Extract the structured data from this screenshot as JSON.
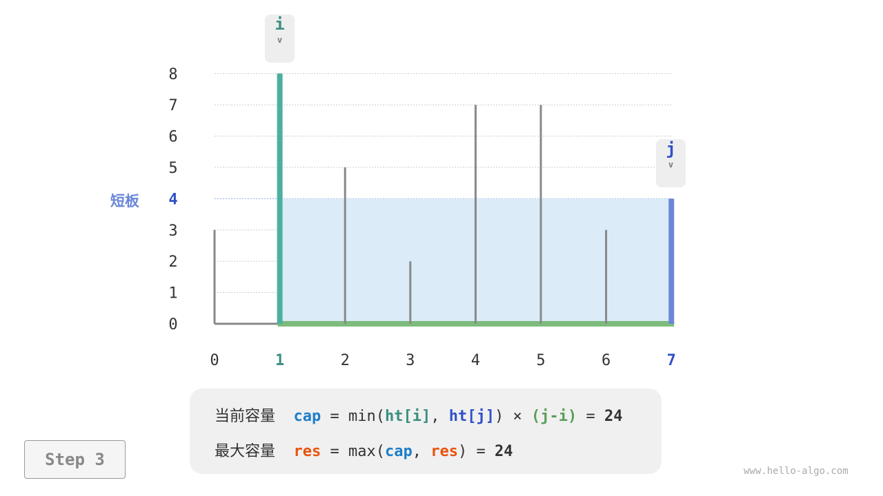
{
  "chart_data": {
    "type": "bar",
    "categories": [
      "0",
      "1",
      "2",
      "3",
      "4",
      "5",
      "6",
      "7"
    ],
    "values": [
      3,
      8,
      5,
      2,
      7,
      7,
      3,
      4
    ],
    "ylim": [
      0,
      8
    ],
    "yticks": [
      "0",
      "1",
      "2",
      "3",
      "4",
      "5",
      "6",
      "7",
      "8"
    ],
    "grid": true,
    "highlight": {
      "i": 1,
      "j": 7,
      "short_height": 4
    }
  },
  "pointers": {
    "i": "i",
    "j": "j",
    "arrow": "v"
  },
  "short_label": "短板",
  "formula": {
    "line1": {
      "label": "当前容量",
      "cap": "cap",
      "eq": " = ",
      "min": "min(",
      "ht_i": "ht[i]",
      "comma": ", ",
      "ht_j": "ht[j]",
      "close": ")",
      "times": " × ",
      "ji": "(j-i)",
      "eq2": " = ",
      "value": "24"
    },
    "line2": {
      "label": "最大容量",
      "res": "res",
      "eq": " = ",
      "max": "max(",
      "cap": "cap",
      "comma": ", ",
      "res2": "res",
      "close": ")",
      "eq2": " = ",
      "value": "24"
    }
  },
  "step": "Step 3",
  "watermark": "www.hello-algo.com",
  "colors": {
    "i": "#4caf9f",
    "j": "#6b86d9",
    "area": "#dbecf8",
    "base": "#7dbb7d",
    "cap": "#1e7ec8",
    "res": "#e8530e",
    "ji": "#5a9e5a",
    "bar": "#888888"
  }
}
